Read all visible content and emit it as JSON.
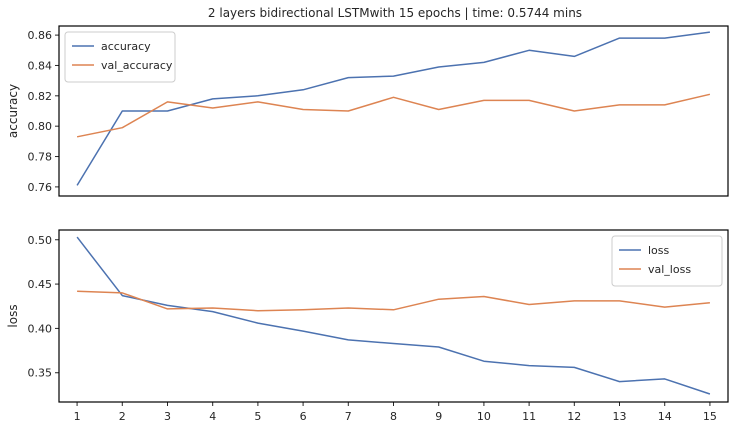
{
  "title": "2 layers bidirectional LSTMwith 15 epochs | time: 0.5744 mins",
  "chart_data": [
    {
      "type": "line",
      "title": "2 layers bidirectional LSTMwith 15 epochs | time: 0.5744 mins",
      "xlabel": "",
      "ylabel": "accuracy",
      "x": [
        1,
        2,
        3,
        4,
        5,
        6,
        7,
        8,
        9,
        10,
        11,
        12,
        13,
        14,
        15
      ],
      "xlim": [
        0.6,
        15.4
      ],
      "ylim": [
        0.754,
        0.866
      ],
      "yticks": [
        0.76,
        0.78,
        0.8,
        0.82,
        0.84,
        0.86
      ],
      "ytick_labels": [
        "0.76",
        "0.78",
        "0.80",
        "0.82",
        "0.84",
        "0.86"
      ],
      "show_xticks": false,
      "grid": false,
      "legend_position": "upper-left",
      "series": [
        {
          "name": "accuracy",
          "color": "#4c72b0",
          "values": [
            0.761,
            0.81,
            0.81,
            0.818,
            0.82,
            0.824,
            0.832,
            0.833,
            0.839,
            0.842,
            0.85,
            0.846,
            0.858,
            0.858,
            0.862
          ]
        },
        {
          "name": "val_accuracy",
          "color": "#dd8452",
          "values": [
            0.793,
            0.799,
            0.816,
            0.812,
            0.816,
            0.811,
            0.81,
            0.819,
            0.811,
            0.817,
            0.817,
            0.81,
            0.814,
            0.814,
            0.821
          ]
        }
      ]
    },
    {
      "type": "line",
      "title": "",
      "xlabel": "",
      "ylabel": "loss",
      "x": [
        1,
        2,
        3,
        4,
        5,
        6,
        7,
        8,
        9,
        10,
        11,
        12,
        13,
        14,
        15
      ],
      "xlim": [
        0.6,
        15.4
      ],
      "ylim": [
        0.317,
        0.511
      ],
      "yticks": [
        0.35,
        0.4,
        0.45,
        0.5
      ],
      "ytick_labels": [
        "0.35",
        "0.40",
        "0.45",
        "0.50"
      ],
      "xticks": [
        1,
        2,
        3,
        4,
        5,
        6,
        7,
        8,
        9,
        10,
        11,
        12,
        13,
        14,
        15
      ],
      "xtick_labels": [
        "1",
        "2",
        "3",
        "4",
        "5",
        "6",
        "7",
        "8",
        "9",
        "10",
        "11",
        "12",
        "13",
        "14",
        "15"
      ],
      "show_xticks": true,
      "grid": false,
      "legend_position": "upper-right",
      "series": [
        {
          "name": "loss",
          "color": "#4c72b0",
          "values": [
            0.503,
            0.437,
            0.426,
            0.419,
            0.406,
            0.397,
            0.387,
            0.383,
            0.379,
            0.363,
            0.358,
            0.356,
            0.34,
            0.343,
            0.326
          ]
        },
        {
          "name": "val_loss",
          "color": "#dd8452",
          "values": [
            0.442,
            0.44,
            0.422,
            0.423,
            0.42,
            0.421,
            0.423,
            0.421,
            0.433,
            0.436,
            0.427,
            0.431,
            0.431,
            0.424,
            0.429
          ]
        }
      ]
    }
  ]
}
